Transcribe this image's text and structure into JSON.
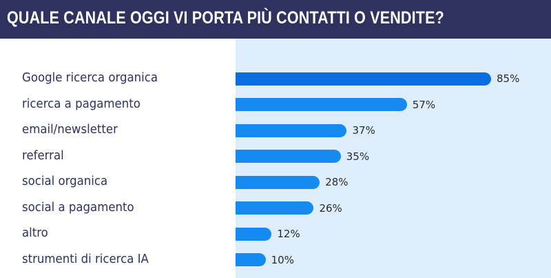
{
  "header": {
    "title": "QUALE CANALE OGGI VI PORTA PIÙ CONTATTI O VENDITE?"
  },
  "colors": {
    "header_bg": "#2f315e",
    "plot_bg": "#deedfc",
    "bar_highlight": "#0a6ee0",
    "bar": "#158bf2"
  },
  "chart_data": {
    "type": "bar",
    "orientation": "horizontal",
    "title": "QUALE CANALE OGGI VI PORTA PIÙ CONTATTI O VENDITE?",
    "categories": [
      "Google ricerca organica",
      "ricerca a pagamento",
      "email/newsletter",
      "referral",
      "social organica",
      "social a pagamento",
      "altro",
      "strumenti di ricerca IA"
    ],
    "values": [
      85,
      57,
      37,
      35,
      28,
      26,
      12,
      10
    ],
    "value_labels": [
      "85%",
      "57%",
      "37%",
      "35%",
      "28%",
      "26%",
      "12%",
      "10%"
    ],
    "unit": "%",
    "xlim": [
      0,
      100
    ],
    "grid": false
  }
}
